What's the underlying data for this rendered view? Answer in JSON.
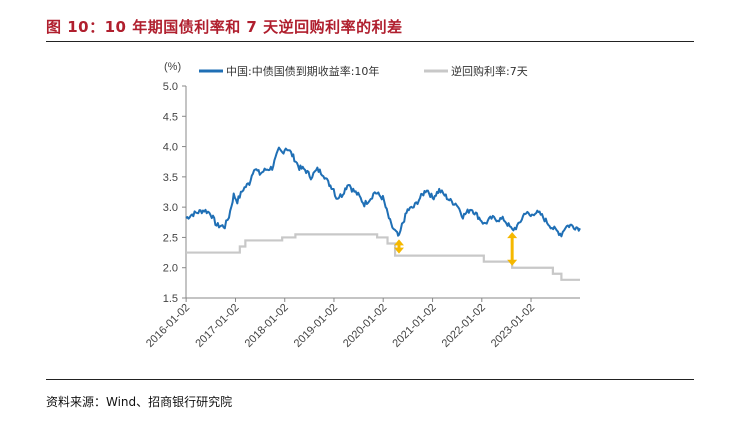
{
  "header": {
    "figure_title": "图 10：10 年期国债利率和 7 天逆回购利率的利差"
  },
  "footer": {
    "source": "资料来源：Wind、招商银行研究院"
  },
  "chart_data": {
    "type": "line",
    "y_unit": "(%)",
    "ylim": [
      1.5,
      5.0
    ],
    "y_ticks": [
      "5.0",
      "4.5",
      "4.0",
      "3.5",
      "3.0",
      "2.5",
      "2.0",
      "1.5"
    ],
    "x_ticks": [
      "2016-01-02",
      "2017-01-02",
      "2018-01-02",
      "2019-01-02",
      "2020-01-02",
      "2021-01-02",
      "2022-01-02",
      "2023-01-02"
    ],
    "xlim": [
      "2016-01-01",
      "2023-12-31"
    ],
    "legend_position": "top",
    "grid": false,
    "colors": {
      "cgb": "#1f6fb5",
      "repo": "#c8c8c8",
      "arrow": "#f5b800"
    },
    "series": [
      {
        "name": "中国:中债国债到期收益率:10年",
        "points": [
          [
            "2016-01-02",
            2.82
          ],
          [
            "2016-02-15",
            2.88
          ],
          [
            "2016-04-01",
            2.92
          ],
          [
            "2016-05-15",
            2.95
          ],
          [
            "2016-07-01",
            2.9
          ],
          [
            "2016-08-15",
            2.7
          ],
          [
            "2016-10-15",
            2.68
          ],
          [
            "2016-11-15",
            2.85
          ],
          [
            "2016-12-20",
            3.2
          ],
          [
            "2017-01-15",
            3.1
          ],
          [
            "2017-03-01",
            3.3
          ],
          [
            "2017-04-15",
            3.4
          ],
          [
            "2017-05-20",
            3.65
          ],
          [
            "2017-07-01",
            3.55
          ],
          [
            "2017-08-15",
            3.62
          ],
          [
            "2017-10-01",
            3.65
          ],
          [
            "2017-11-20",
            3.95
          ],
          [
            "2017-12-15",
            3.9
          ],
          [
            "2018-01-10",
            3.98
          ],
          [
            "2018-02-01",
            3.95
          ],
          [
            "2018-03-15",
            3.8
          ],
          [
            "2018-04-20",
            3.65
          ],
          [
            "2018-06-01",
            3.62
          ],
          [
            "2018-07-15",
            3.5
          ],
          [
            "2018-09-01",
            3.62
          ],
          [
            "2018-10-15",
            3.55
          ],
          [
            "2018-11-20",
            3.4
          ],
          [
            "2018-12-31",
            3.3
          ],
          [
            "2019-01-20",
            3.15
          ],
          [
            "2019-03-01",
            3.2
          ],
          [
            "2019-04-20",
            3.4
          ],
          [
            "2019-05-15",
            3.3
          ],
          [
            "2019-07-01",
            3.2
          ],
          [
            "2019-08-15",
            3.05
          ],
          [
            "2019-10-01",
            3.15
          ],
          [
            "2019-11-01",
            3.25
          ],
          [
            "2019-12-31",
            3.15
          ],
          [
            "2020-01-20",
            3.0
          ],
          [
            "2020-03-01",
            2.7
          ],
          [
            "2020-04-15",
            2.55
          ],
          [
            "2020-04-28",
            2.5
          ],
          [
            "2020-05-20",
            2.7
          ],
          [
            "2020-07-01",
            2.95
          ],
          [
            "2020-08-15",
            3.0
          ],
          [
            "2020-10-01",
            3.15
          ],
          [
            "2020-11-20",
            3.3
          ],
          [
            "2021-01-02",
            3.15
          ],
          [
            "2021-02-20",
            3.28
          ],
          [
            "2021-04-01",
            3.2
          ],
          [
            "2021-05-15",
            3.1
          ],
          [
            "2021-07-01",
            3.05
          ],
          [
            "2021-08-15",
            2.85
          ],
          [
            "2021-10-15",
            2.98
          ],
          [
            "2021-12-31",
            2.78
          ],
          [
            "2022-01-20",
            2.72
          ],
          [
            "2022-03-15",
            2.82
          ],
          [
            "2022-05-01",
            2.8
          ],
          [
            "2022-06-15",
            2.8
          ],
          [
            "2022-08-15",
            2.62
          ],
          [
            "2022-10-01",
            2.7
          ],
          [
            "2022-11-20",
            2.92
          ],
          [
            "2022-12-31",
            2.85
          ],
          [
            "2023-02-01",
            2.92
          ],
          [
            "2023-03-15",
            2.88
          ],
          [
            "2023-05-01",
            2.75
          ],
          [
            "2023-06-15",
            2.65
          ],
          [
            "2023-08-15",
            2.55
          ],
          [
            "2023-09-15",
            2.68
          ],
          [
            "2023-10-20",
            2.7
          ],
          [
            "2023-12-31",
            2.65
          ]
        ]
      },
      {
        "name": "逆回购利率:7天",
        "steps": [
          [
            "2016-01-01",
            2.25
          ],
          [
            "2017-02-03",
            2.35
          ],
          [
            "2017-03-16",
            2.45
          ],
          [
            "2017-12-14",
            2.5
          ],
          [
            "2018-03-22",
            2.55
          ],
          [
            "2019-11-18",
            2.5
          ],
          [
            "2020-02-03",
            2.4
          ],
          [
            "2020-03-30",
            2.2
          ],
          [
            "2021-12-20",
            2.2
          ],
          [
            "2022-01-17",
            2.1
          ],
          [
            "2022-08-15",
            2.0
          ],
          [
            "2023-06-13",
            1.9
          ],
          [
            "2023-08-15",
            1.8
          ],
          [
            "2023-12-31",
            1.8
          ]
        ]
      }
    ],
    "annotations": [
      {
        "kind": "double-arrow",
        "x": "2020-04-28",
        "from": 2.2,
        "to": 2.5
      },
      {
        "kind": "double-arrow",
        "x": "2022-08-15",
        "from": 2.0,
        "to": 2.62
      }
    ]
  }
}
